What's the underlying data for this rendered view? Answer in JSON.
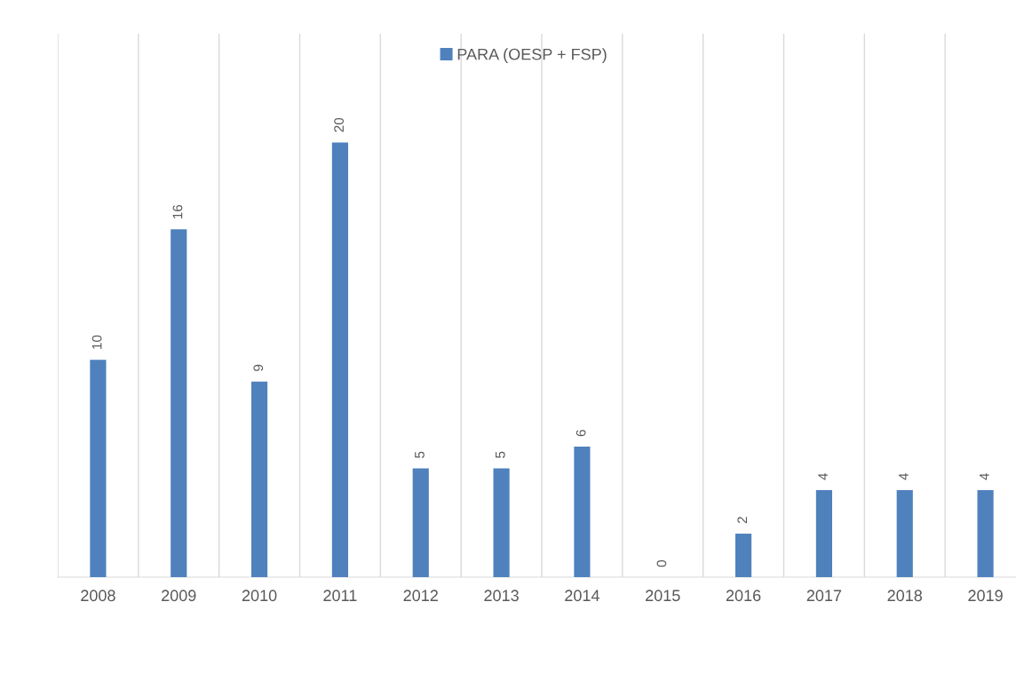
{
  "chart_data": {
    "type": "bar",
    "categories": [
      "2008",
      "2009",
      "2010",
      "2011",
      "2012",
      "2013",
      "2014",
      "2015",
      "2016",
      "2017",
      "2018",
      "2019"
    ],
    "series": [
      {
        "name": "PARA (OESP + FSP)",
        "color": "#4f81bd",
        "values": [
          10,
          16,
          9,
          20,
          5,
          5,
          6,
          0,
          2,
          4,
          4,
          4
        ]
      }
    ],
    "ylim": [
      0,
      25
    ],
    "data_labels": true,
    "grid": "x",
    "legend": "top",
    "tick_labels": "x"
  }
}
